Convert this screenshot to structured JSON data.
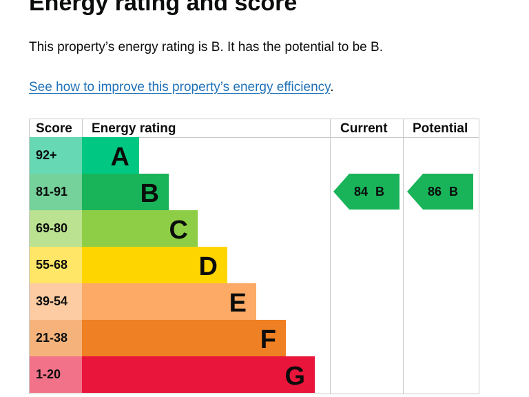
{
  "page": {
    "heading": "Energy rating and score",
    "summary": "This property’s energy rating is B. It has the potential to be B.",
    "link_text": "See how to improve this property’s energy efficiency",
    "link_trailing": "."
  },
  "table": {
    "headers": {
      "score": "Score",
      "rating": "Energy rating",
      "current": "Current",
      "potential": "Potential"
    },
    "rows": [
      {
        "score": "92+",
        "band": "A",
        "color": "#00c781",
        "score_bg": "#66d8b3"
      },
      {
        "score": "81-91",
        "band": "B",
        "color": "#19b459",
        "score_bg": "#75d29b"
      },
      {
        "score": "69-80",
        "band": "C",
        "color": "#8dce46",
        "score_bg": "#bbe290"
      },
      {
        "score": "55-68",
        "band": "D",
        "color": "#ffd500",
        "score_bg": "#ffe666"
      },
      {
        "score": "39-54",
        "band": "E",
        "color": "#fcaa65",
        "score_bg": "#fdcca3"
      },
      {
        "score": "21-38",
        "band": "F",
        "color": "#ef8023",
        "score_bg": "#f5b37b"
      },
      {
        "score": "1-20",
        "band": "G",
        "color": "#e9153b",
        "score_bg": "#f27389"
      }
    ],
    "current": {
      "label": "84 B",
      "band": "B",
      "color": "#19b459"
    },
    "potential": {
      "label": "86 B",
      "band": "B",
      "color": "#19b459"
    }
  }
}
